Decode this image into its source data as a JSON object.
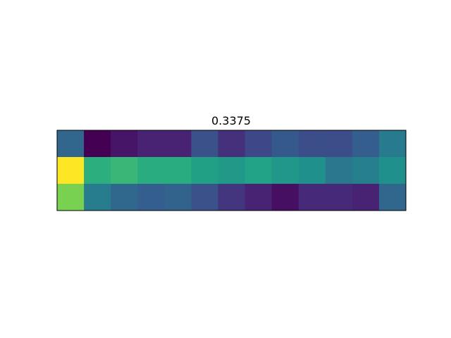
{
  "chart_data": {
    "type": "heatmap",
    "title": "0.3375",
    "rows": 3,
    "cols": 13,
    "colormap": "viridis",
    "axes_visible": false,
    "values": [
      [
        0.33,
        0.0,
        0.06,
        0.1,
        0.1,
        0.25,
        0.14,
        0.22,
        0.28,
        0.24,
        0.24,
        0.3,
        0.41
      ],
      [
        1.0,
        0.63,
        0.67,
        0.62,
        0.62,
        0.57,
        0.54,
        0.58,
        0.53,
        0.5,
        0.4,
        0.43,
        0.5
      ],
      [
        0.8,
        0.42,
        0.34,
        0.3,
        0.32,
        0.25,
        0.16,
        0.1,
        0.04,
        0.12,
        0.12,
        0.1,
        0.33
      ]
    ]
  }
}
